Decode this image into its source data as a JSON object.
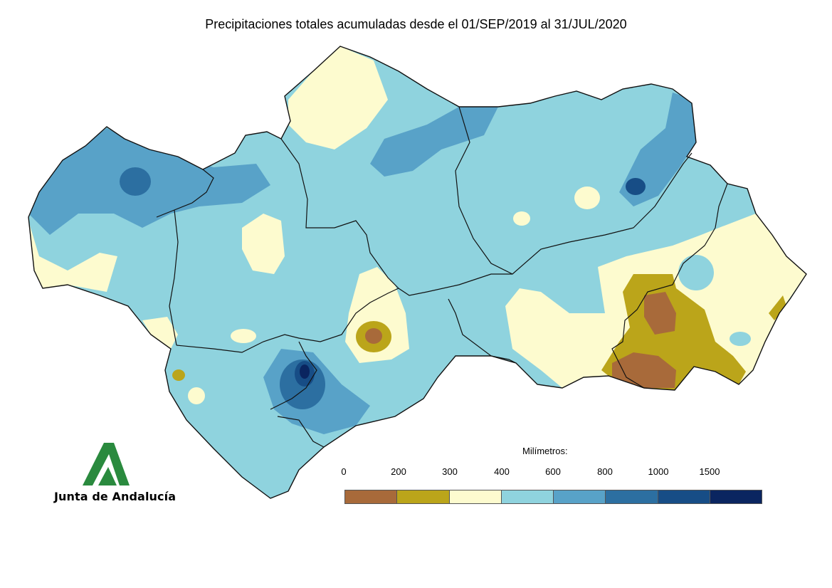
{
  "title": "Precipitaciones totales acumuladas desde el 01/SEP/2019 al 31/JUL/2020",
  "legend": {
    "title": "Milímetros:",
    "ticks": [
      "0",
      "200",
      "300",
      "400",
      "600",
      "800",
      "1000",
      "1500"
    ],
    "classes": [
      {
        "range": "0-200",
        "color": "#a86a3a"
      },
      {
        "range": "200-300",
        "color": "#bba51a"
      },
      {
        "range": "300-400",
        "color": "#fdfbcf"
      },
      {
        "range": "400-600",
        "color": "#8fd3de"
      },
      {
        "range": "600-800",
        "color": "#58a2c8"
      },
      {
        "range": "800-1000",
        "color": "#2c6fa1"
      },
      {
        "range": "1000-1500",
        "color": "#174d86"
      },
      {
        "range": "1500+",
        "color": "#0a2560"
      }
    ]
  },
  "logo": {
    "text": "Junta de Andalucía",
    "color": "#2a8a3e"
  }
}
